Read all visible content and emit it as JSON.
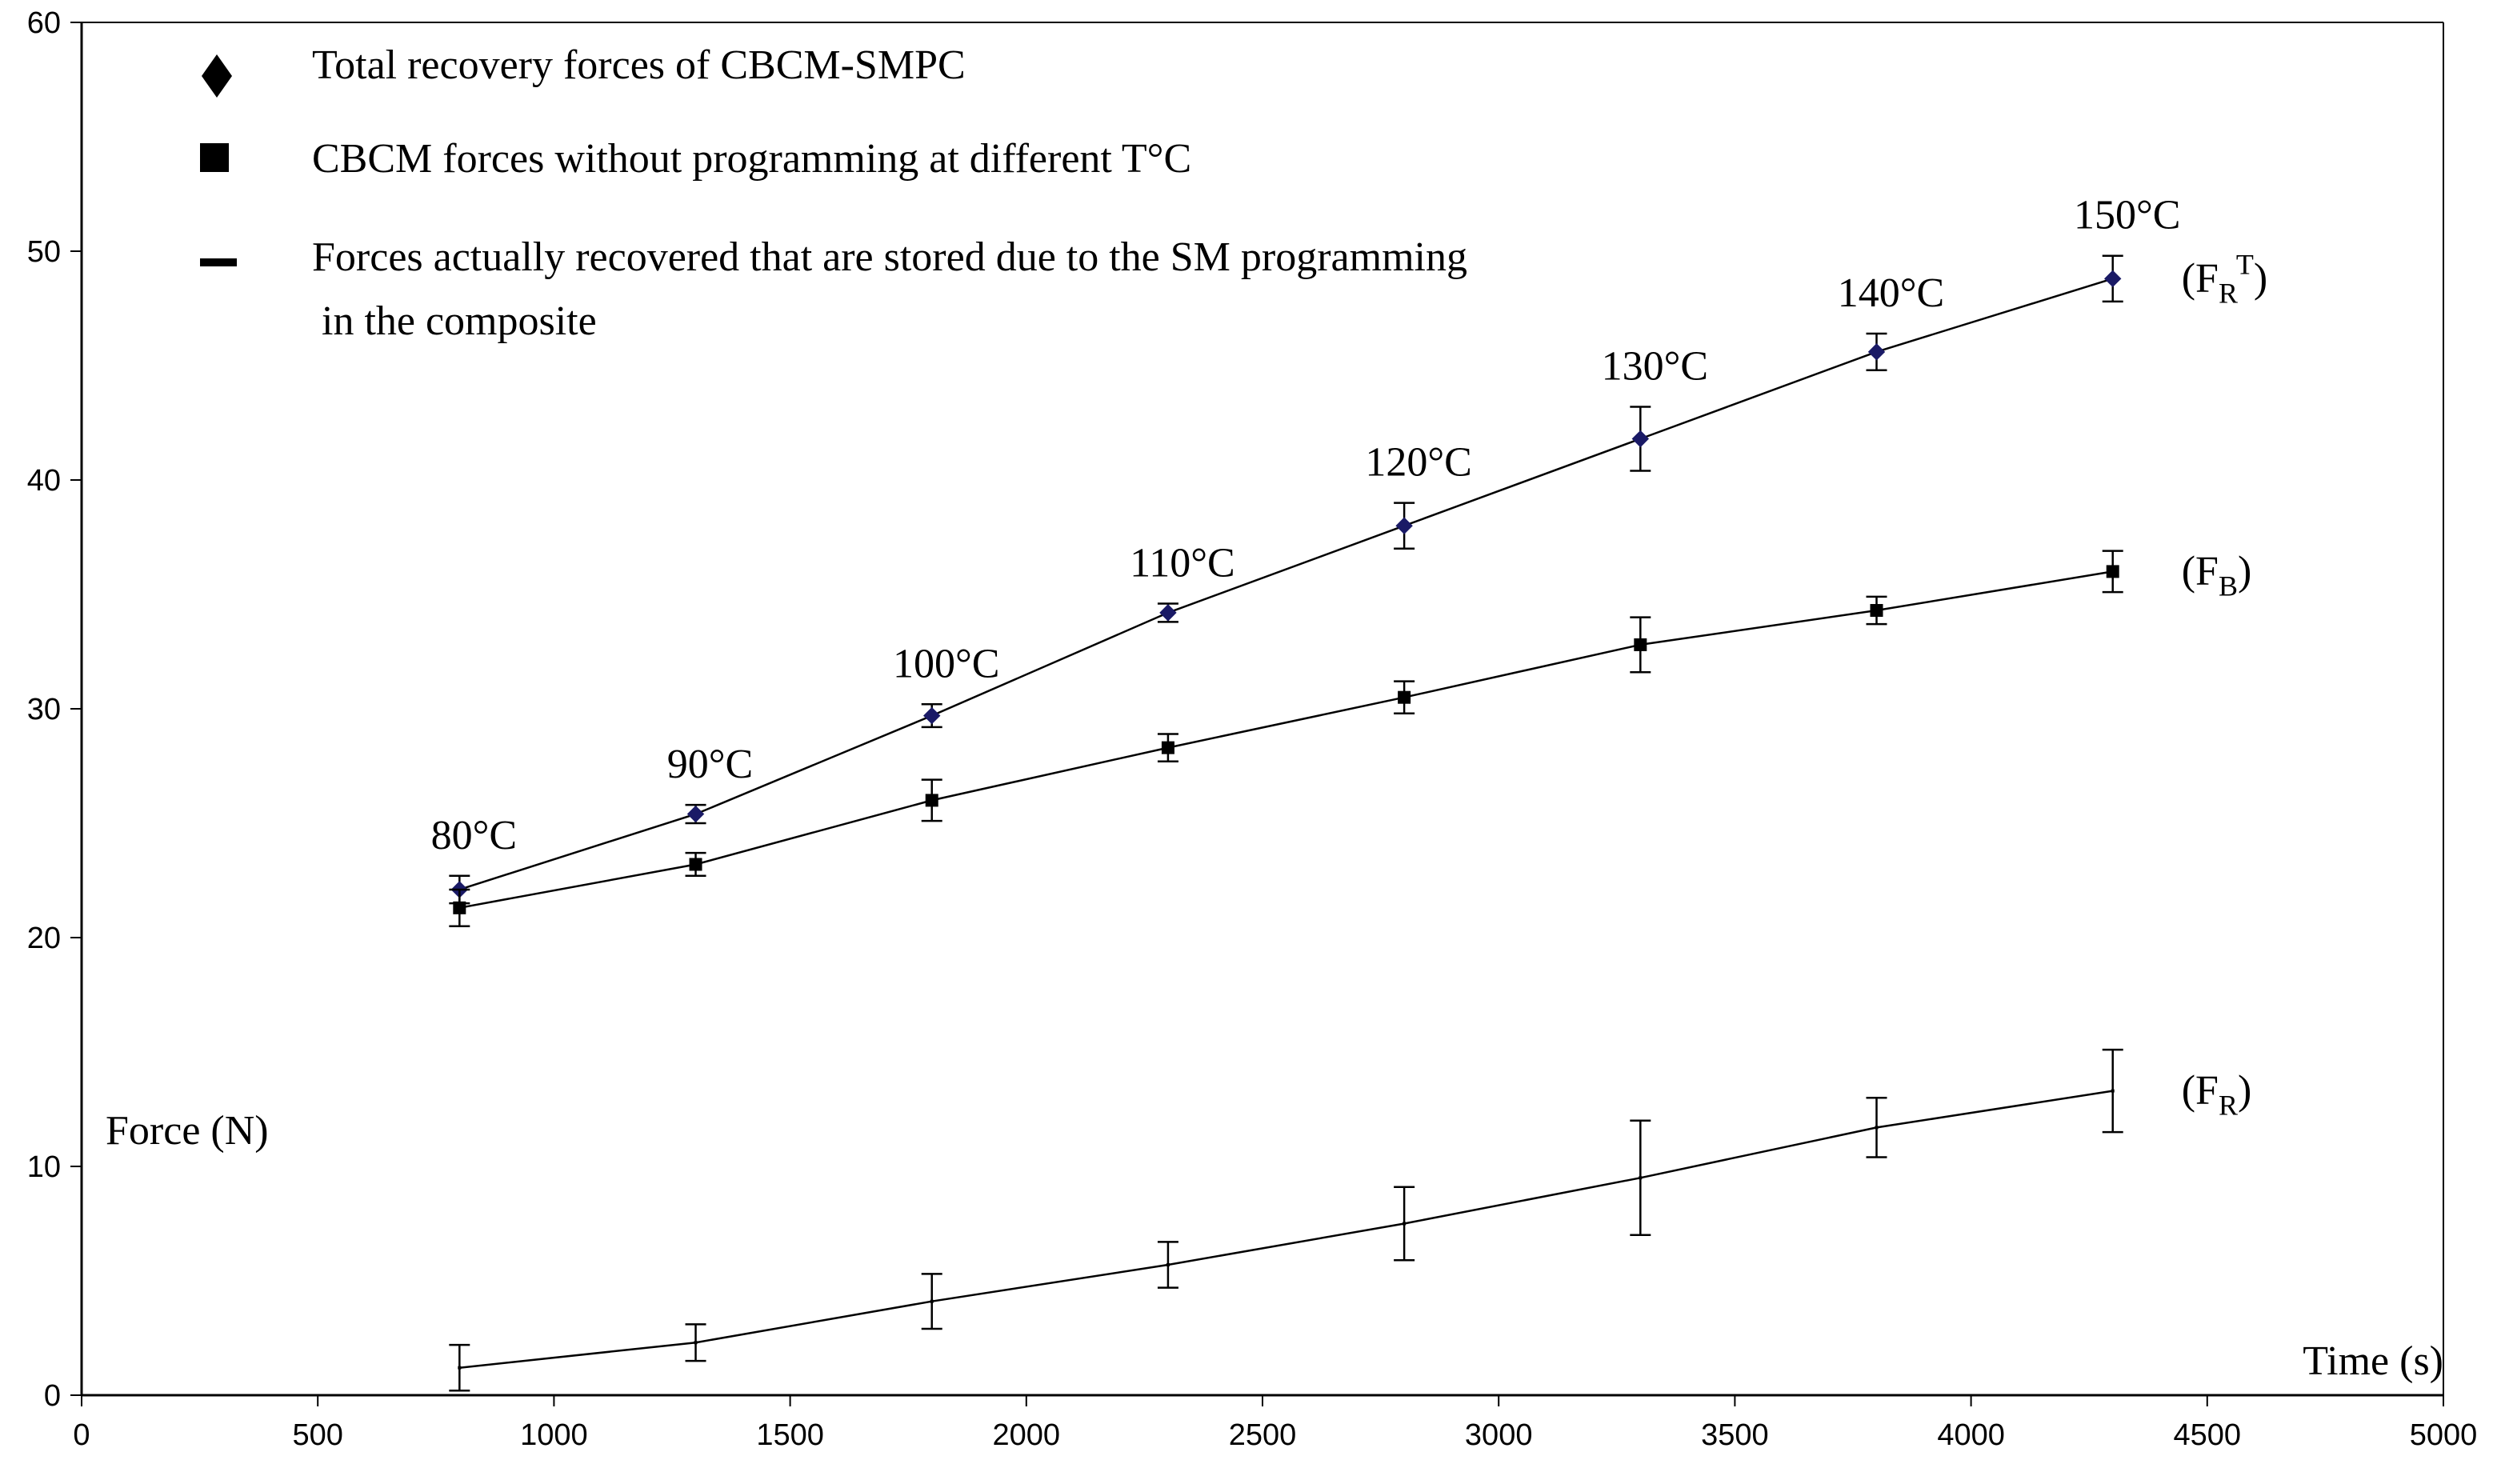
{
  "chart_data": {
    "type": "scatter",
    "xlabel": "Time (s)",
    "ylabel": "Force (N)",
    "xlim": [
      0,
      5000
    ],
    "ylim": [
      0,
      60
    ],
    "x_ticks": [
      "0",
      "500",
      "1000",
      "1500",
      "2000",
      "2500",
      "3000",
      "3500",
      "4000",
      "4500",
      "5000"
    ],
    "y_ticks": [
      "0",
      "10",
      "20",
      "30",
      "40",
      "50",
      "60"
    ],
    "grid": false,
    "legend_position": "top-left",
    "x": [
      800,
      1300,
      1800,
      2300,
      2800,
      3300,
      3800,
      4300
    ],
    "temperature_labels": [
      "80°C",
      "90°C",
      "100°C",
      "110°C",
      "120°C",
      "130°C",
      "140°C",
      "150°C"
    ],
    "series": [
      {
        "name": "Total recovery forces of CBCM-SMPC",
        "marker": "diamond",
        "color": "#1a1a66",
        "values": [
          22.1,
          25.4,
          29.7,
          34.2,
          38.0,
          41.8,
          45.6,
          48.8
        ],
        "errors": [
          0.6,
          0.4,
          0.5,
          0.4,
          1.0,
          1.4,
          0.8,
          1.0
        ],
        "curve_label": {
          "main": "(F",
          "sub": "R",
          "sup": "T",
          "close": ")"
        }
      },
      {
        "name": "CBCM forces without programming at different T°C",
        "marker": "square",
        "color": "#000000",
        "values": [
          21.3,
          23.2,
          26.0,
          28.3,
          30.5,
          32.8,
          34.3,
          36.0
        ],
        "errors": [
          0.8,
          0.5,
          0.9,
          0.6,
          0.7,
          1.2,
          0.6,
          0.9
        ],
        "curve_label": {
          "main": "(F",
          "sub": "B",
          "sup": "",
          "close": ")"
        }
      },
      {
        "name": "Forces actually recovered that are stored due to the SM programming",
        "name_line2": "in the composite",
        "marker": "dash",
        "color": "#000000",
        "values": [
          1.2,
          2.3,
          4.1,
          5.7,
          7.5,
          9.5,
          11.7,
          13.3
        ],
        "errors": [
          1.0,
          0.8,
          1.2,
          1.0,
          1.6,
          2.5,
          1.3,
          1.8
        ],
        "curve_label": {
          "main": "(F",
          "sub": "R",
          "sup": "",
          "close": ")"
        }
      }
    ]
  }
}
